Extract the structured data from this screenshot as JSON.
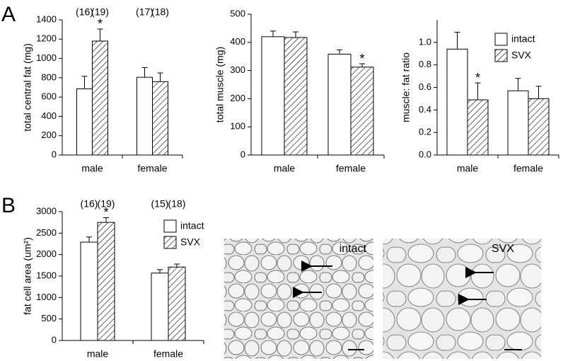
{
  "panel_labels": [
    "A",
    "B"
  ],
  "images": [
    {
      "label": "intact"
    },
    {
      "label": "SVX"
    }
  ],
  "chart_data": [
    {
      "type": "bar",
      "y_label": "total central fat (mg)",
      "categories": [
        "male",
        "female"
      ],
      "ylim": [
        0,
        1400
      ],
      "yticks": [
        0,
        200,
        400,
        600,
        800,
        1000,
        1200,
        1400
      ],
      "series": [
        {
          "name": "intact",
          "color": "#ffffff",
          "hatch": false,
          "values": [
            685,
            805
          ],
          "errors": [
            130,
            100
          ],
          "n_labels": [
            "(16)",
            "(17)"
          ]
        },
        {
          "name": "SVX",
          "color": "#ffffff",
          "hatch": true,
          "values": [
            1180,
            760
          ],
          "errors": [
            125,
            90
          ],
          "n_labels": [
            "(19)",
            "(18)"
          ]
        }
      ],
      "annotations": [
        {
          "text": "*",
          "category": "male",
          "series": "SVX"
        }
      ],
      "legend": false
    },
    {
      "type": "bar",
      "y_label": "total muscle (mg)",
      "categories": [
        "male",
        "female"
      ],
      "ylim": [
        0,
        500
      ],
      "yticks": [
        0,
        100,
        200,
        300,
        400,
        500
      ],
      "series": [
        {
          "name": "intact",
          "color": "#ffffff",
          "hatch": false,
          "values": [
            420,
            358
          ],
          "errors": [
            20,
            15
          ]
        },
        {
          "name": "SVX",
          "color": "#ffffff",
          "hatch": true,
          "values": [
            417,
            312
          ],
          "errors": [
            20,
            12
          ]
        }
      ],
      "annotations": [
        {
          "text": "*",
          "category": "female",
          "series": "SVX"
        }
      ],
      "legend": false
    },
    {
      "type": "bar",
      "y_label": "muscle: fat ratio",
      "categories": [
        "male",
        "female"
      ],
      "ylim": [
        0,
        1.2
      ],
      "yticks": [
        {
          "value": 0,
          "label": "0.0"
        },
        {
          "value": 0.2,
          "label": "0.2"
        },
        {
          "value": 0.4,
          "label": "0.4"
        },
        {
          "value": 0.6,
          "label": "0.6"
        },
        {
          "value": 0.8,
          "label": "0.8"
        },
        {
          "value": 1,
          "label": "1.0"
        }
      ],
      "series": [
        {
          "name": "intact",
          "color": "#ffffff",
          "hatch": false,
          "values": [
            0.94,
            0.57
          ],
          "errors": [
            0.15,
            0.11
          ]
        },
        {
          "name": "SVX",
          "color": "#ffffff",
          "hatch": true,
          "values": [
            0.49,
            0.5
          ],
          "errors": [
            0.15,
            0.11
          ]
        }
      ],
      "annotations": [
        {
          "text": "*",
          "category": "male",
          "series": "SVX"
        }
      ],
      "legend": "top-right"
    },
    {
      "type": "bar",
      "y_label": "fat cell area (um²)",
      "categories": [
        "male",
        "female"
      ],
      "ylim": [
        0,
        3000
      ],
      "yticks": [
        0,
        500,
        1000,
        1500,
        2000,
        2500,
        3000
      ],
      "series": [
        {
          "name": "intact",
          "color": "#ffffff",
          "hatch": false,
          "values": [
            2290,
            1570
          ],
          "errors": [
            120,
            80
          ],
          "n_labels": [
            "(16)",
            "(15)"
          ]
        },
        {
          "name": "SVX",
          "color": "#ffffff",
          "hatch": true,
          "values": [
            2750,
            1710
          ],
          "errors": [
            110,
            70
          ],
          "n_labels": [
            "(19)",
            "(18)"
          ]
        }
      ],
      "annotations": [
        {
          "text": "*",
          "category": "male",
          "series": "SVX"
        }
      ],
      "legend": "top-right"
    }
  ]
}
